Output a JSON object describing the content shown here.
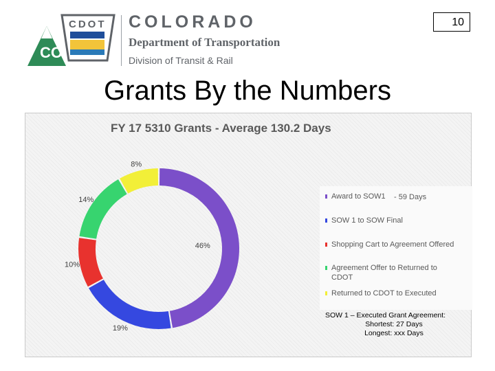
{
  "page_number": "10",
  "header": {
    "logo_text": "CDOT",
    "logo_badge": "CO",
    "org_name": "COLORADO",
    "department": "Department of Transportation",
    "division": "Division of Transit & Rail"
  },
  "page_title": "Grants By the Numbers",
  "chart_data": {
    "type": "pie",
    "donut": true,
    "title": "FY 17 5310 Grants - Average 130.2 Days",
    "legend_position": "right",
    "series": [
      {
        "name": "Award to SOW1",
        "value": 46,
        "label": "46%",
        "color": "#7b4fc9"
      },
      {
        "name": "SOW 1 to SOW Final",
        "value": 19,
        "label": "19%",
        "color": "#3548e0"
      },
      {
        "name": "Shopping Cart to Agreement Offered",
        "value": 10,
        "label": "10%",
        "color": "#e8322e"
      },
      {
        "name": "Agreement Offer to Returned to CDOT",
        "value": 14,
        "label": "14%",
        "color": "#37d46f"
      },
      {
        "name": "Returned to CDOT to Executed",
        "value": 8,
        "label": "8%",
        "color": "#f2ef38"
      }
    ]
  },
  "legend_extra": "- 59 Days",
  "note": {
    "line1": "SOW 1 – Executed Grant Agreement:",
    "line2": "Shortest: 27 Days",
    "line3": "Longest: xxx Days"
  }
}
